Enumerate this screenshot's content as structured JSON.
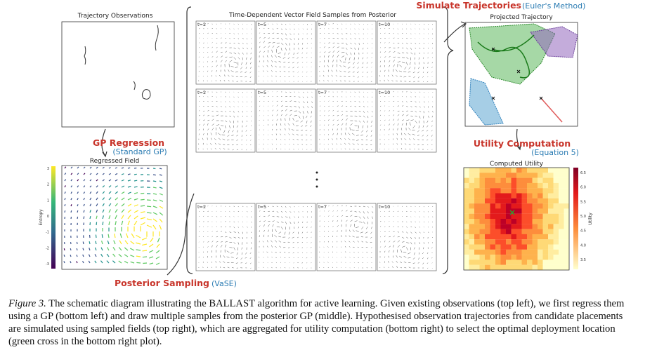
{
  "observations_panel": {
    "title": "Trajectory Observations"
  },
  "regression_step": {
    "title": "GP Regression",
    "method": "(Standard GP)"
  },
  "regressed_panel": {
    "title": "Regressed Field",
    "colorbar_label": "Entropy",
    "colorbar_ticks": [
      "3",
      "2",
      "1",
      "0",
      "-1",
      "-2",
      "-3"
    ]
  },
  "samples_panel": {
    "title": "Time-Dependent Vector Field Samples from Posterior",
    "rows": [
      [
        "t=2",
        "t=5",
        "t=7",
        "t=10"
      ],
      [
        "t=2",
        "t=5",
        "t=7",
        "t=10"
      ],
      [
        "t=2",
        "t=5",
        "t=7",
        "t=10"
      ]
    ]
  },
  "sampling_step": {
    "title": "Posterior Sampling",
    "method": "(VaSE)"
  },
  "simulate_step": {
    "title": "Simulate Trajectories",
    "method": "(Euler's Method)"
  },
  "projected_panel": {
    "title": "Projected Trajectory"
  },
  "utility_step": {
    "title": "Utility Computation",
    "method": "(Equation 5)"
  },
  "utility_panel": {
    "title": "Computed Utility",
    "colorbar_label": "Utility",
    "colorbar_ticks": [
      "6.5",
      "6.0",
      "5.5",
      "5.0",
      "4.5",
      "4.0",
      "3.5"
    ]
  },
  "caption": {
    "label": "Figure 3.",
    "text": "The schematic diagram illustrating the BALLAST algorithm for active learning. Given existing observations (top left), we first regress them using a GP (bottom left) and draw multiple samples from the posterior GP (middle). Hypothesised observation trajectories from candidate placements are simulated using sampled fields (top right), which are aggregated for utility computation (bottom right) to select the optimal deployment location (green cross in the bottom right plot)."
  }
}
